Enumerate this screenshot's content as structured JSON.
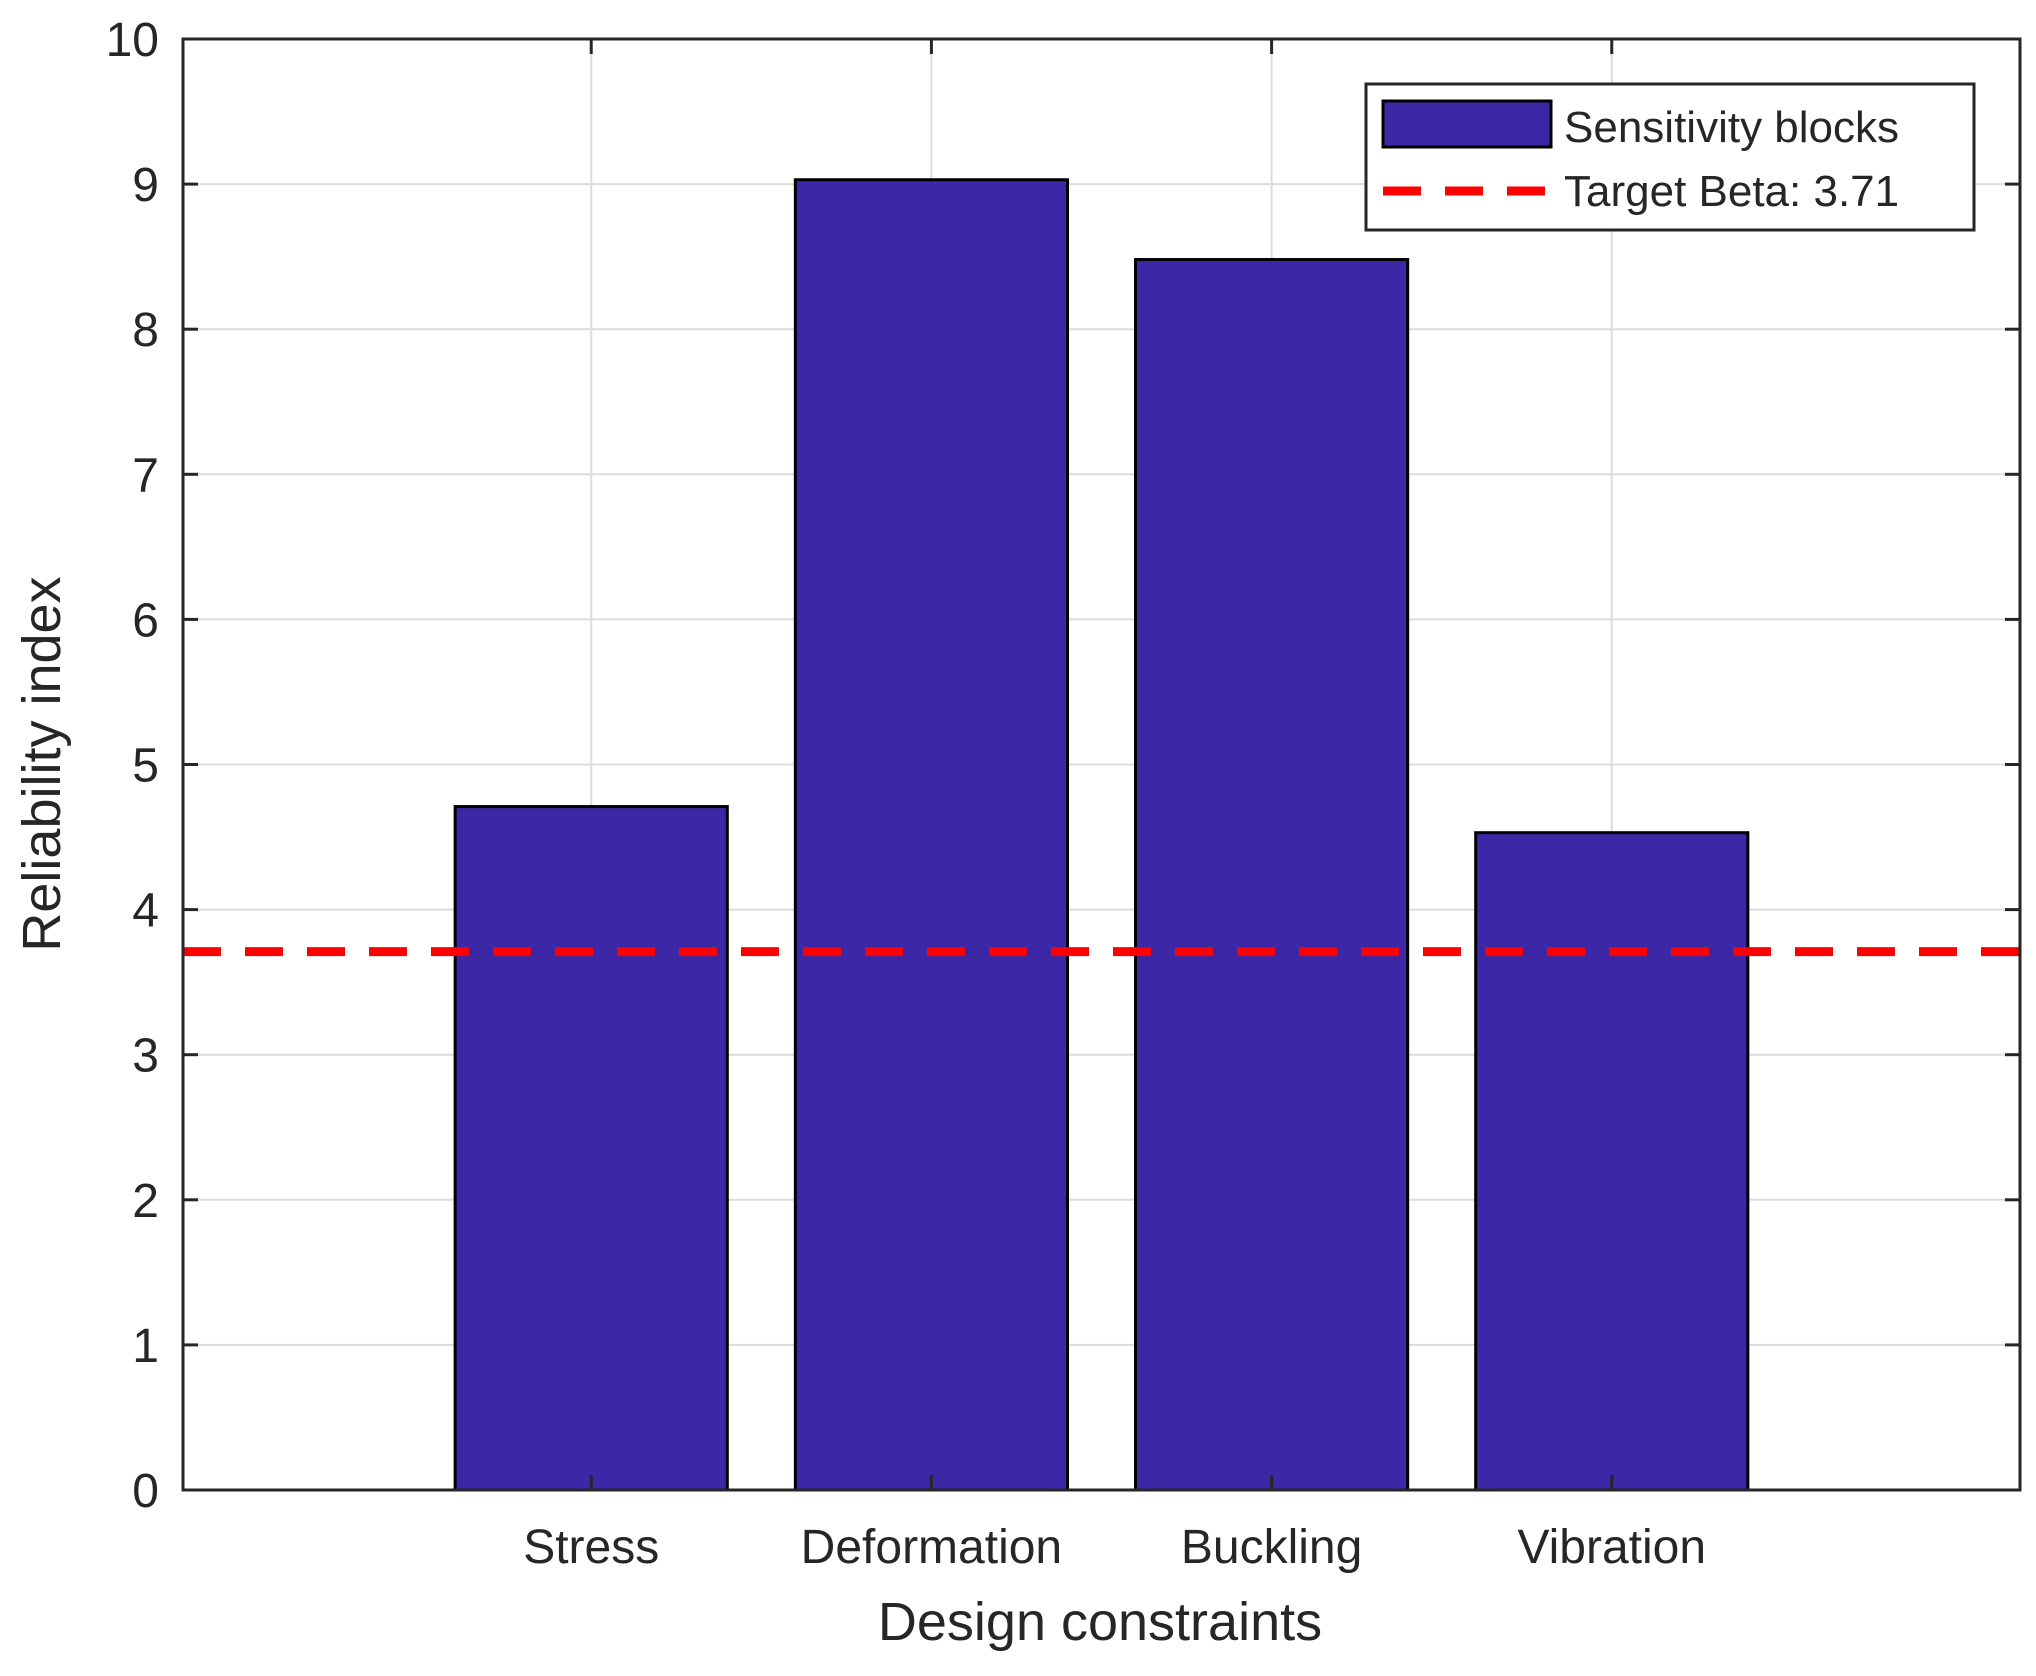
{
  "chart_data": {
    "type": "bar",
    "title": "",
    "xlabel": "Design constraints",
    "ylabel": "Reliability index",
    "categories": [
      "Stress",
      "Deformation",
      "Buckling",
      "Vibration"
    ],
    "x_positions": [
      1,
      2,
      3,
      4
    ],
    "xlim": [
      -0.2,
      5.2
    ],
    "ylim": [
      0,
      10
    ],
    "yticks": [
      "0",
      "1",
      "2",
      "3",
      "4",
      "5",
      "6",
      "7",
      "8",
      "9",
      "10"
    ],
    "grid": true,
    "bar_width": 0.8,
    "series": [
      {
        "name": "Sensitivity blocks",
        "values": [
          4.71,
          9.03,
          8.48,
          4.53
        ]
      }
    ],
    "reference_line": {
      "name": "Target Beta: 3.71",
      "value": 3.71
    },
    "legend": {
      "position": "top-right",
      "bar_label": "Sensitivity blocks",
      "line_label": "Target Beta: 3.71"
    },
    "colors": {
      "bar_fill": "#3c27a6",
      "bar_edge": "#000000",
      "target_line": "#ff0000",
      "grid": "#dcdcdc",
      "axes": "#262626"
    }
  }
}
